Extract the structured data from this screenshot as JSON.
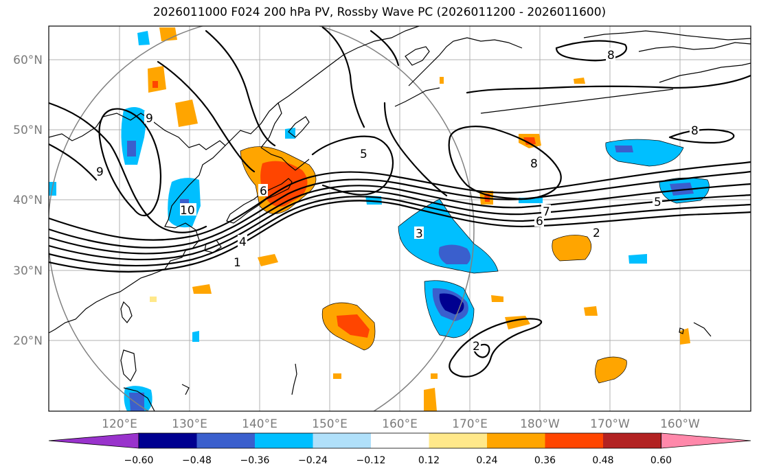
{
  "title": "2026011000 F024 200 hPa PV, Rossby Wave PC (2026011200 - 2026011600)",
  "lat_labels": [
    "60°N",
    "50°N",
    "40°N",
    "30°N",
    "20°N"
  ],
  "lon_labels": [
    "120°E",
    "130°E",
    "140°E",
    "150°E",
    "160°E",
    "170°E",
    "180°W",
    "170°W",
    "160°W"
  ],
  "colorbar": {
    "ticks": [
      "−0.60",
      "−0.48",
      "−0.36",
      "−0.24",
      "−0.12",
      "0.12",
      "0.24",
      "0.36",
      "0.48",
      "0.60"
    ],
    "colors": [
      "#9933cc",
      "#000090",
      "#3a5fcd",
      "#00bfff",
      "#b0e0fa",
      "#ffffff",
      "#ffe88a",
      "#ffa500",
      "#ff4500",
      "#b22222",
      "#ff88aa"
    ]
  },
  "contour_labels": [
    "1",
    "2",
    "3",
    "4",
    "5",
    "6",
    "7",
    "8",
    "9",
    "10"
  ],
  "palette": {
    "coast": "#000000",
    "contour": "#000000",
    "grid": "#b0b0b0",
    "circle": "#808080"
  }
}
